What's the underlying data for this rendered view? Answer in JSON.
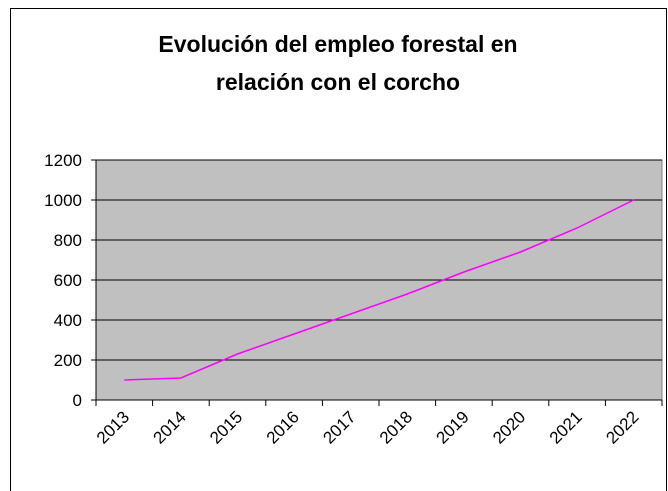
{
  "chart_data": {
    "type": "line",
    "title": [
      "Evolución del empleo forestal en",
      "relación con el corcho"
    ],
    "categories": [
      "2013",
      "2014",
      "2015",
      "2016",
      "2017",
      "2018",
      "2019",
      "2020",
      "2021",
      "2022"
    ],
    "series": [
      {
        "color": "#ff00ff",
        "values": [
          100,
          110,
          230,
          330,
          430,
          530,
          640,
          740,
          860,
          1000
        ]
      }
    ],
    "ylim": [
      0,
      1200
    ],
    "yticks": [
      0,
      200,
      400,
      600,
      800,
      1000,
      1200
    ],
    "grid": true
  }
}
